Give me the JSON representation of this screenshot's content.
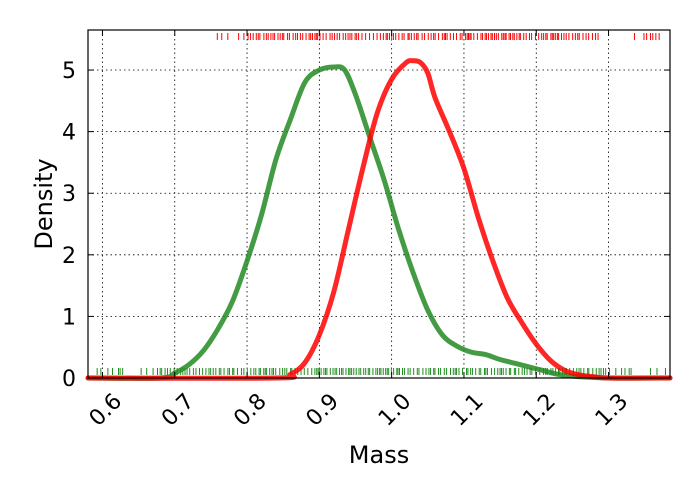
{
  "chart_data": {
    "type": "line",
    "title": "",
    "xlabel": "Mass",
    "ylabel": "Density",
    "xlim": [
      0.58,
      1.385
    ],
    "ylim": [
      0,
      5.65
    ],
    "grid": true,
    "legend": "none",
    "xticks": [
      {
        "value": 0.6,
        "label": "0.6"
      },
      {
        "value": 0.7,
        "label": "0.7"
      },
      {
        "value": 0.8,
        "label": "0.8"
      },
      {
        "value": 0.9,
        "label": "0.9"
      },
      {
        "value": 1.0,
        "label": "1.0"
      },
      {
        "value": 1.1,
        "label": "1.1"
      },
      {
        "value": 1.2,
        "label": "1.2"
      },
      {
        "value": 1.3,
        "label": "1.3"
      }
    ],
    "yticks": [
      {
        "value": 0,
        "label": "0"
      },
      {
        "value": 1,
        "label": "1"
      },
      {
        "value": 2,
        "label": "2"
      },
      {
        "value": 3,
        "label": "3"
      },
      {
        "value": 4,
        "label": "4"
      },
      {
        "value": 5,
        "label": "5"
      }
    ],
    "series": [
      {
        "color": "#228b22",
        "x": [
          0.58,
          0.68,
          0.7,
          0.72,
          0.74,
          0.76,
          0.78,
          0.8,
          0.82,
          0.84,
          0.86,
          0.88,
          0.9,
          0.92,
          0.935,
          0.95,
          0.97,
          0.99,
          1.01,
          1.03,
          1.05,
          1.07,
          1.09,
          1.11,
          1.13,
          1.15,
          1.17,
          1.19,
          1.21,
          1.23,
          1.26,
          1.3,
          1.385
        ],
        "y": [
          0,
          0,
          0.08,
          0.22,
          0.45,
          0.8,
          1.25,
          1.9,
          2.65,
          3.55,
          4.2,
          4.8,
          5.0,
          5.05,
          5.0,
          4.6,
          3.9,
          3.2,
          2.4,
          1.7,
          1.1,
          0.7,
          0.52,
          0.42,
          0.38,
          0.3,
          0.24,
          0.18,
          0.12,
          0.06,
          0.02,
          0.0,
          0.0
        ],
        "rug": {
          "position": "bottom",
          "start": 0.585,
          "end": 1.38,
          "dense_range": [
            0.68,
            1.3
          ]
        }
      },
      {
        "color": "#ff0000",
        "x": [
          0.58,
          0.84,
          0.86,
          0.88,
          0.9,
          0.92,
          0.94,
          0.96,
          0.98,
          1.0,
          1.02,
          1.03,
          1.04,
          1.05,
          1.06,
          1.08,
          1.1,
          1.12,
          1.14,
          1.16,
          1.18,
          1.2,
          1.22,
          1.24,
          1.26,
          1.28,
          1.3,
          1.385
        ],
        "y": [
          0,
          0,
          0.06,
          0.25,
          0.7,
          1.4,
          2.4,
          3.4,
          4.3,
          4.85,
          5.12,
          5.15,
          5.12,
          4.95,
          4.55,
          4.0,
          3.4,
          2.6,
          1.9,
          1.3,
          0.9,
          0.55,
          0.28,
          0.12,
          0.05,
          0.02,
          0.0,
          0.0
        ],
        "rug": {
          "position": "top",
          "start": 0.755,
          "end": 1.375,
          "dense_range": [
            0.8,
            1.29
          ]
        }
      }
    ]
  }
}
